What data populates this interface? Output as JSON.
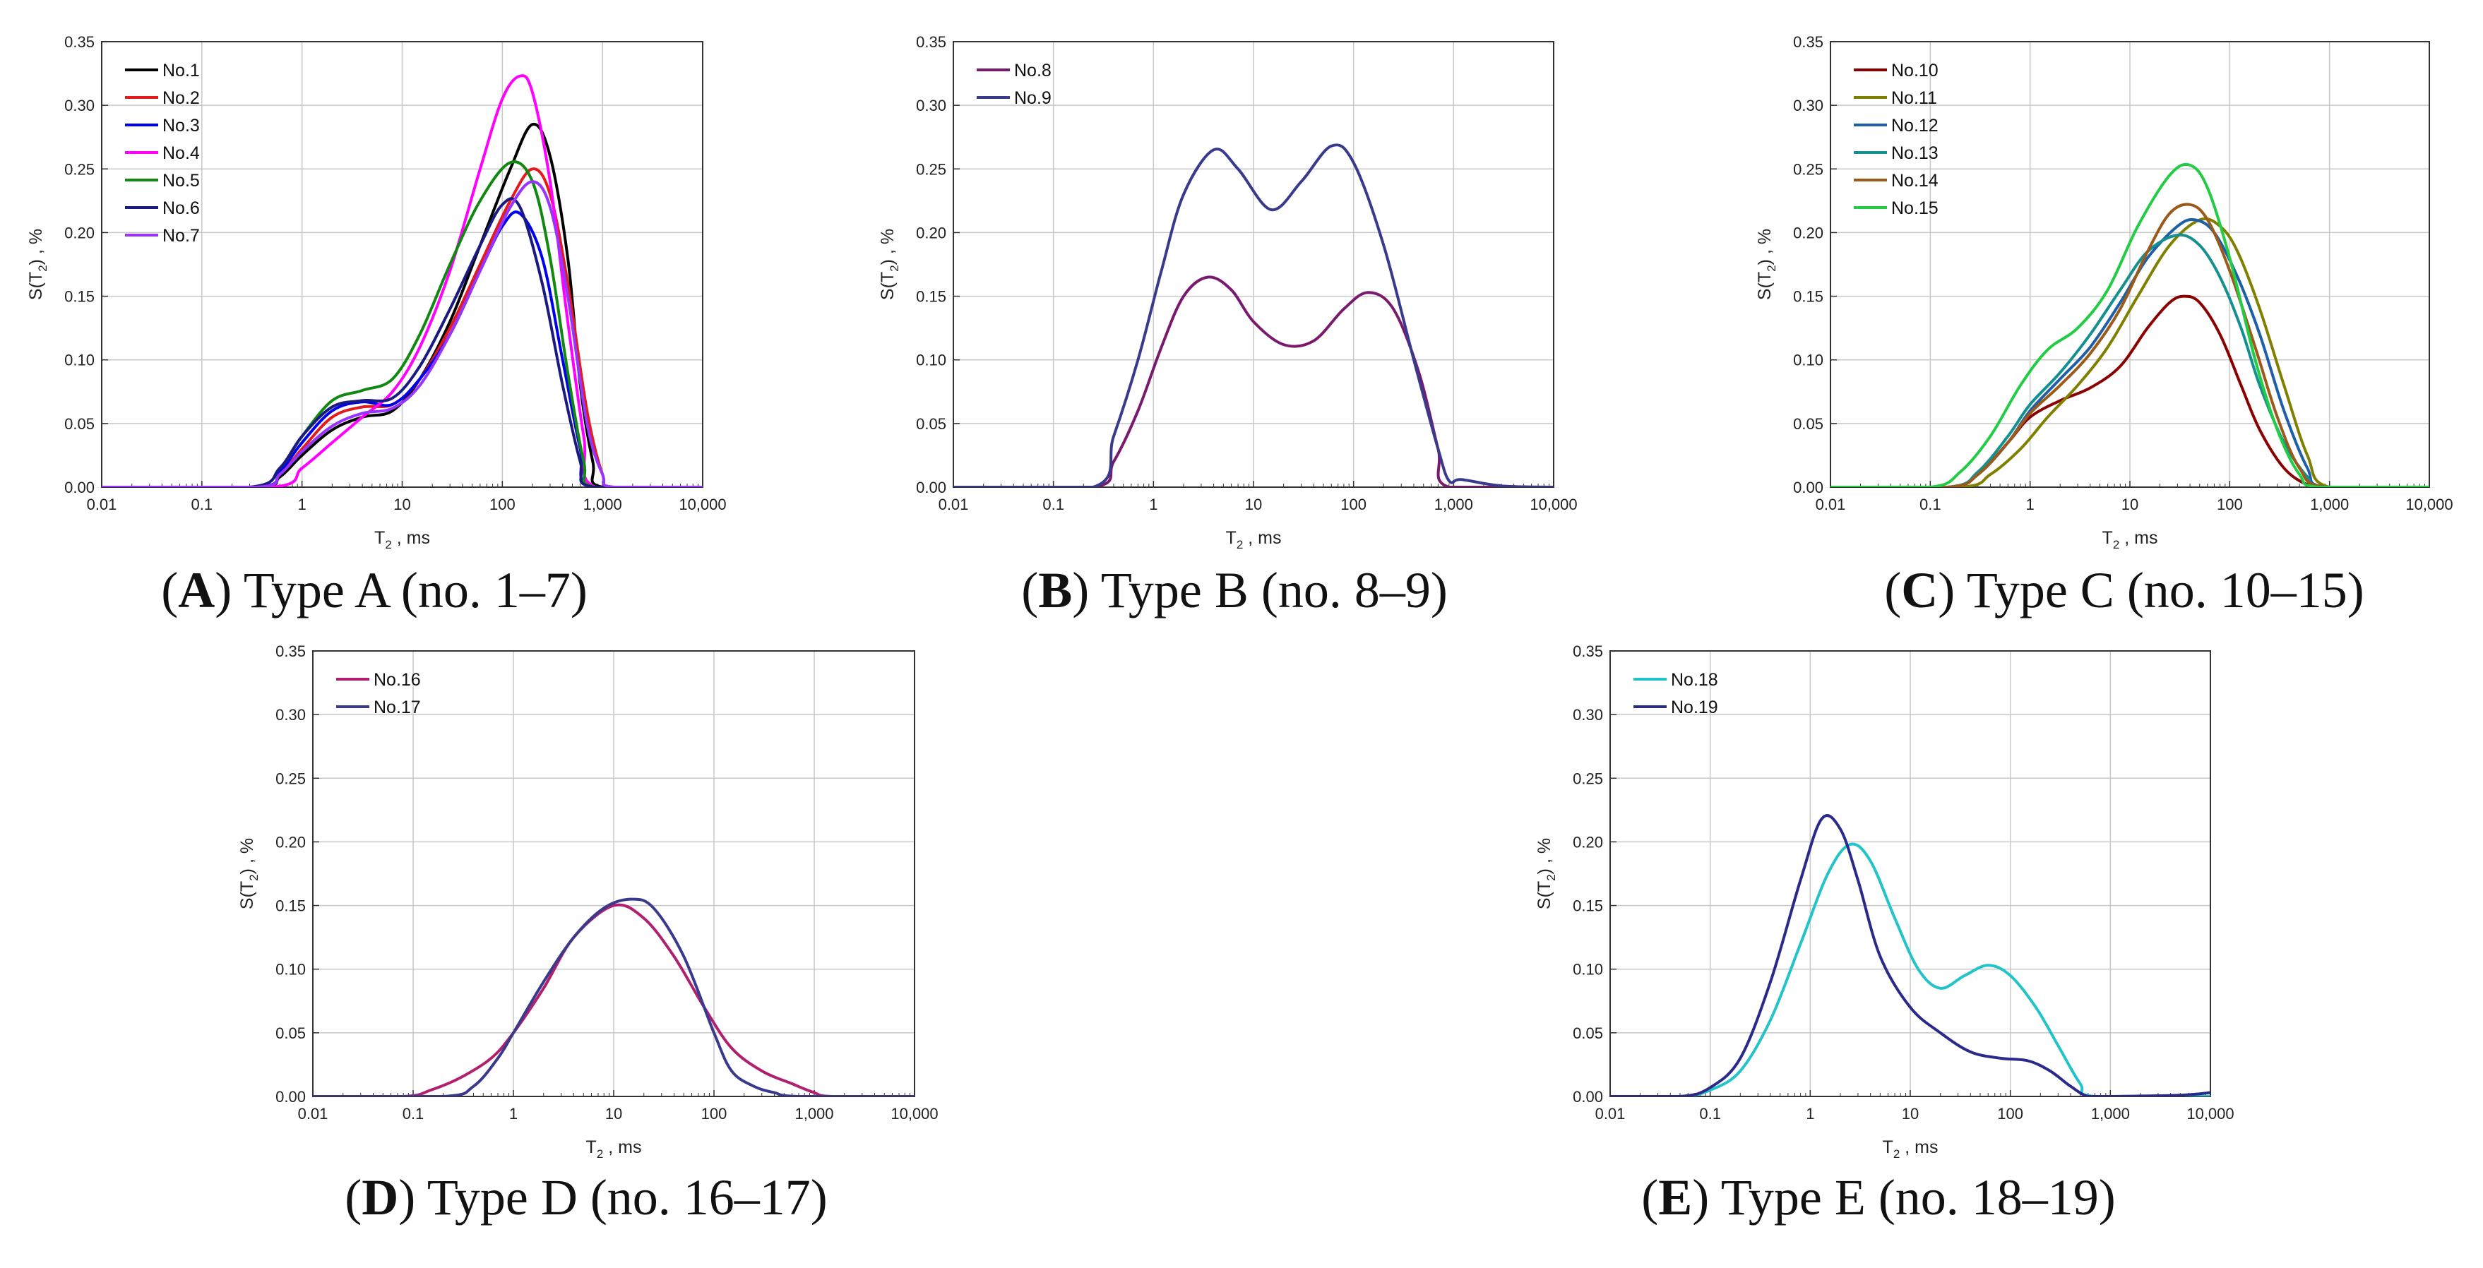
{
  "chart_data": [
    {
      "panel": "A",
      "type": "line",
      "caption": {
        "letter": "A",
        "text": "Type A (no. 1–7)"
      },
      "xscale": "log",
      "xlim": [
        0.01,
        10000
      ],
      "ylim": [
        0,
        0.35
      ],
      "x_ticks": [
        "0.01",
        "0.1",
        "1",
        "10",
        "100",
        "1,000",
        "10,000"
      ],
      "y_ticks": [
        "0.00",
        "0.05",
        "0.10",
        "0.15",
        "0.20",
        "0.25",
        "0.30",
        "0.35"
      ],
      "xlabel": {
        "main": "T",
        "sub": "2",
        "rest": " , ms"
      },
      "ylabel": {
        "main": "S(T",
        "sub": "2",
        "rest": ") , %"
      },
      "grid": true,
      "legend": "top-left",
      "series": [
        {
          "name": "No.1",
          "color": "#000000",
          "x": [
            0.01,
            0.35,
            0.6,
            1,
            2,
            4,
            8,
            15,
            30,
            60,
            120,
            200,
            300,
            450,
            600,
            800,
            1000,
            10000
          ],
          "y": [
            0,
            0,
            0.008,
            0.025,
            0.045,
            0.055,
            0.06,
            0.085,
            0.13,
            0.19,
            0.25,
            0.285,
            0.26,
            0.18,
            0.08,
            0.02,
            0,
            0
          ]
        },
        {
          "name": "No.2",
          "color": "#e41a1c",
          "x": [
            0.01,
            0.35,
            0.6,
            1,
            2,
            4,
            8,
            15,
            30,
            60,
            120,
            200,
            300,
            450,
            700,
            1000,
            1300,
            10000
          ],
          "y": [
            0,
            0,
            0.01,
            0.03,
            0.055,
            0.063,
            0.065,
            0.085,
            0.125,
            0.175,
            0.225,
            0.25,
            0.23,
            0.16,
            0.06,
            0.01,
            0,
            0
          ]
        },
        {
          "name": "No.3",
          "color": "#0000ee",
          "x": [
            0.01,
            0.35,
            0.6,
            1,
            2,
            4,
            8,
            15,
            30,
            60,
            100,
            150,
            250,
            400,
            600,
            800,
            10000
          ],
          "y": [
            0,
            0,
            0.012,
            0.035,
            0.06,
            0.067,
            0.065,
            0.085,
            0.12,
            0.17,
            0.205,
            0.215,
            0.18,
            0.1,
            0.03,
            0,
            0
          ]
        },
        {
          "name": "No.4",
          "color": "#ff00ff",
          "x": [
            0.01,
            0.5,
            1,
            2,
            4,
            8,
            15,
            30,
            60,
            100,
            150,
            200,
            300,
            450,
            650,
            850,
            10000
          ],
          "y": [
            0,
            0,
            0.015,
            0.035,
            0.055,
            0.075,
            0.11,
            0.17,
            0.25,
            0.305,
            0.323,
            0.31,
            0.24,
            0.13,
            0.04,
            0,
            0
          ]
        },
        {
          "name": "No.5",
          "color": "#118811",
          "x": [
            0.01,
            0.3,
            0.6,
            1,
            2,
            4,
            8,
            15,
            30,
            60,
            120,
            200,
            300,
            450,
            650,
            850,
            10000
          ],
          "y": [
            0,
            0,
            0.015,
            0.04,
            0.068,
            0.076,
            0.085,
            0.12,
            0.175,
            0.225,
            0.255,
            0.24,
            0.18,
            0.09,
            0.02,
            0,
            0
          ]
        },
        {
          "name": "No.6",
          "color": "#1a1a80",
          "x": [
            0.01,
            0.3,
            0.6,
            1,
            2,
            4,
            8,
            15,
            30,
            60,
            100,
            150,
            250,
            400,
            600,
            800,
            10000
          ],
          "y": [
            0,
            0,
            0.015,
            0.04,
            0.063,
            0.068,
            0.07,
            0.095,
            0.14,
            0.19,
            0.222,
            0.22,
            0.16,
            0.08,
            0.02,
            0,
            0
          ]
        },
        {
          "name": "No.7",
          "color": "#9933ff",
          "x": [
            0.01,
            0.35,
            0.6,
            1,
            2,
            4,
            8,
            15,
            30,
            60,
            120,
            200,
            300,
            450,
            700,
            1000,
            1300,
            10000
          ],
          "y": [
            0,
            0,
            0.01,
            0.028,
            0.048,
            0.058,
            0.062,
            0.08,
            0.12,
            0.17,
            0.22,
            0.24,
            0.22,
            0.15,
            0.05,
            0.01,
            0,
            0
          ]
        }
      ]
    },
    {
      "panel": "B",
      "type": "line",
      "caption": {
        "letter": "B",
        "text": "Type B (no. 8–9)"
      },
      "xscale": "log",
      "xlim": [
        0.01,
        10000
      ],
      "ylim": [
        0,
        0.35
      ],
      "x_ticks": [
        "0.01",
        "0.1",
        "1",
        "10",
        "100",
        "1,000",
        "10,000"
      ],
      "y_ticks": [
        "0.00",
        "0.05",
        "0.10",
        "0.15",
        "0.20",
        "0.25",
        "0.30",
        "0.35"
      ],
      "xlabel": {
        "main": "T",
        "sub": "2",
        "rest": " , ms"
      },
      "ylabel": {
        "main": "S(T",
        "sub": "2",
        "rest": ") , %"
      },
      "grid": true,
      "legend": "top-left",
      "series": [
        {
          "name": "No.8",
          "color": "#7a1a6e",
          "x": [
            0.01,
            0.25,
            0.4,
            0.7,
            1.2,
            2,
            3.5,
            6,
            10,
            20,
            40,
            80,
            140,
            250,
            450,
            700,
            900,
            10000
          ],
          "y": [
            0,
            0,
            0.02,
            0.06,
            0.11,
            0.15,
            0.165,
            0.155,
            0.13,
            0.112,
            0.115,
            0.14,
            0.153,
            0.14,
            0.09,
            0.03,
            0,
            0
          ]
        },
        {
          "name": "No.9",
          "color": "#3a3a8c",
          "x": [
            0.01,
            0.25,
            0.4,
            0.7,
            1.2,
            2,
            4,
            7,
            15,
            30,
            60,
            100,
            200,
            400,
            700,
            900,
            1200,
            3000,
            10000
          ],
          "y": [
            0,
            0,
            0.04,
            0.1,
            0.17,
            0.23,
            0.265,
            0.25,
            0.218,
            0.24,
            0.268,
            0.255,
            0.19,
            0.1,
            0.03,
            0.005,
            0.006,
            0.001,
            0
          ]
        }
      ]
    },
    {
      "panel": "C",
      "type": "line",
      "caption": {
        "letter": "C",
        "text": "Type C (no. 10–15)"
      },
      "xscale": "log",
      "xlim": [
        0.01,
        10000
      ],
      "ylim": [
        0,
        0.35
      ],
      "x_ticks": [
        "0.01",
        "0.1",
        "1",
        "10",
        "100",
        "1,000",
        "10,000"
      ],
      "y_ticks": [
        "0.00",
        "0.05",
        "0.10",
        "0.15",
        "0.20",
        "0.25",
        "0.30",
        "0.35"
      ],
      "xlabel": {
        "main": "T",
        "sub": "2",
        "rest": " , ms"
      },
      "ylabel": {
        "main": "S(T",
        "sub": "2",
        "rest": ") , %"
      },
      "grid": true,
      "legend": "top-left",
      "series": [
        {
          "name": "No.10",
          "color": "#8b0000",
          "x": [
            0.01,
            0.15,
            0.3,
            0.6,
            1,
            2,
            4,
            8,
            15,
            25,
            35,
            50,
            80,
            130,
            200,
            350,
            600,
            1000,
            10000
          ],
          "y": [
            0,
            0,
            0.01,
            0.035,
            0.055,
            0.068,
            0.078,
            0.095,
            0.125,
            0.145,
            0.15,
            0.145,
            0.12,
            0.08,
            0.045,
            0.015,
            0.002,
            0,
            0
          ]
        },
        {
          "name": "No.11",
          "color": "#808000",
          "x": [
            0.01,
            0.2,
            0.4,
            0.8,
            1.5,
            3,
            6,
            12,
            25,
            50,
            80,
            120,
            200,
            350,
            600,
            1000,
            10000
          ],
          "y": [
            0,
            0,
            0.01,
            0.03,
            0.055,
            0.08,
            0.11,
            0.15,
            0.19,
            0.21,
            0.205,
            0.185,
            0.14,
            0.08,
            0.025,
            0,
            0
          ]
        },
        {
          "name": "No.12",
          "color": "#1f5fa8",
          "x": [
            0.01,
            0.15,
            0.3,
            0.6,
            1,
            2,
            4,
            8,
            15,
            30,
            45,
            70,
            120,
            200,
            350,
            600,
            900,
            10000
          ],
          "y": [
            0,
            0,
            0.01,
            0.035,
            0.06,
            0.085,
            0.11,
            0.145,
            0.18,
            0.205,
            0.21,
            0.2,
            0.165,
            0.12,
            0.06,
            0.015,
            0,
            0
          ]
        },
        {
          "name": "No.13",
          "color": "#159090",
          "x": [
            0.01,
            0.15,
            0.3,
            0.6,
            1,
            2,
            4,
            8,
            15,
            30,
            50,
            80,
            130,
            200,
            350,
            600,
            850,
            10000
          ],
          "y": [
            0,
            0,
            0.012,
            0.04,
            0.065,
            0.09,
            0.12,
            0.155,
            0.185,
            0.198,
            0.19,
            0.165,
            0.125,
            0.08,
            0.035,
            0.008,
            0,
            0
          ]
        },
        {
          "name": "No.14",
          "color": "#9b5a1a",
          "x": [
            0.01,
            0.15,
            0.3,
            0.6,
            1,
            2,
            4,
            8,
            15,
            25,
            40,
            60,
            100,
            180,
            300,
            500,
            900,
            10000
          ],
          "y": [
            0,
            0,
            0.01,
            0.035,
            0.058,
            0.08,
            0.105,
            0.14,
            0.185,
            0.215,
            0.222,
            0.21,
            0.17,
            0.11,
            0.055,
            0.015,
            0,
            0
          ]
        },
        {
          "name": "No.15",
          "color": "#22cc44",
          "x": [
            0.01,
            0.1,
            0.2,
            0.4,
            0.8,
            1.5,
            3,
            6,
            12,
            25,
            40,
            60,
            100,
            180,
            300,
            500,
            800,
            10000
          ],
          "y": [
            0,
            0,
            0.012,
            0.04,
            0.08,
            0.108,
            0.125,
            0.155,
            0.205,
            0.245,
            0.253,
            0.235,
            0.18,
            0.1,
            0.045,
            0.01,
            0,
            0
          ]
        }
      ]
    },
    {
      "panel": "D",
      "type": "line",
      "caption": {
        "letter": "D",
        "text": "Type D (no. 16–17)"
      },
      "xscale": "log",
      "xlim": [
        0.01,
        10000
      ],
      "ylim": [
        0,
        0.35
      ],
      "x_ticks": [
        "0.01",
        "0.1",
        "1",
        "10",
        "100",
        "1,000",
        "10,000"
      ],
      "y_ticks": [
        "0.00",
        "0.05",
        "0.10",
        "0.15",
        "0.20",
        "0.25",
        "0.30",
        "0.35"
      ],
      "xlabel": {
        "main": "T",
        "sub": "2",
        "rest": " , ms"
      },
      "ylabel": {
        "main": "S(T",
        "sub": "2",
        "rest": ") , %"
      },
      "grid": true,
      "legend": "top-left",
      "series": [
        {
          "name": "No.16",
          "color": "#b0206e",
          "x": [
            0.01,
            0.08,
            0.15,
            0.3,
            0.6,
            1,
            2,
            4,
            10,
            20,
            40,
            80,
            150,
            300,
            600,
            1000,
            1500,
            10000
          ],
          "y": [
            0,
            0,
            0.005,
            0.015,
            0.03,
            0.05,
            0.085,
            0.125,
            0.15,
            0.14,
            0.11,
            0.07,
            0.038,
            0.02,
            0.01,
            0.003,
            0,
            0
          ]
        },
        {
          "name": "No.17",
          "color": "#3a3a8c",
          "x": [
            0.01,
            0.2,
            0.4,
            0.7,
            1,
            2,
            4,
            8,
            15,
            25,
            50,
            100,
            150,
            250,
            400,
            700,
            10000
          ],
          "y": [
            0,
            0,
            0.008,
            0.03,
            0.05,
            0.09,
            0.125,
            0.148,
            0.155,
            0.148,
            0.11,
            0.05,
            0.02,
            0.008,
            0.003,
            0,
            0
          ]
        }
      ]
    },
    {
      "panel": "E",
      "type": "line",
      "caption": {
        "letter": "E",
        "text": "Type E (no. 18–19)"
      },
      "xscale": "log",
      "xlim": [
        0.01,
        10000
      ],
      "ylim": [
        0,
        0.35
      ],
      "x_ticks": [
        "0.01",
        "0.1",
        "1",
        "10",
        "100",
        "1,000",
        "10,000"
      ],
      "y_ticks": [
        "0.00",
        "0.05",
        "0.10",
        "0.15",
        "0.20",
        "0.25",
        "0.30",
        "0.35"
      ],
      "xlabel": {
        "main": "T",
        "sub": "2",
        "rest": " , ms"
      },
      "ylabel": {
        "main": "S(T",
        "sub": "2",
        "rest": ") , %"
      },
      "grid": true,
      "legend": "top-left",
      "series": [
        {
          "name": "No.18",
          "color": "#22c3c9",
          "x": [
            0.01,
            0.05,
            0.1,
            0.2,
            0.4,
            0.8,
            1.5,
            2.5,
            4,
            7,
            12,
            20,
            35,
            60,
            100,
            180,
            300,
            500,
            700,
            10000
          ],
          "y": [
            0,
            0,
            0.005,
            0.02,
            0.06,
            0.12,
            0.175,
            0.198,
            0.185,
            0.14,
            0.1,
            0.085,
            0.095,
            0.103,
            0.095,
            0.07,
            0.04,
            0.01,
            0,
            0
          ]
        },
        {
          "name": "No.19",
          "color": "#2a2a8a",
          "x": [
            0.01,
            0.05,
            0.1,
            0.2,
            0.4,
            0.8,
            1.3,
            2,
            3,
            5,
            10,
            20,
            40,
            80,
            150,
            250,
            400,
            600,
            1000,
            5000,
            10000
          ],
          "y": [
            0,
            0,
            0.007,
            0.03,
            0.09,
            0.17,
            0.218,
            0.21,
            0.17,
            0.11,
            0.07,
            0.05,
            0.035,
            0.03,
            0.028,
            0.02,
            0.008,
            0,
            0,
            0.001,
            0.003
          ]
        }
      ]
    }
  ]
}
